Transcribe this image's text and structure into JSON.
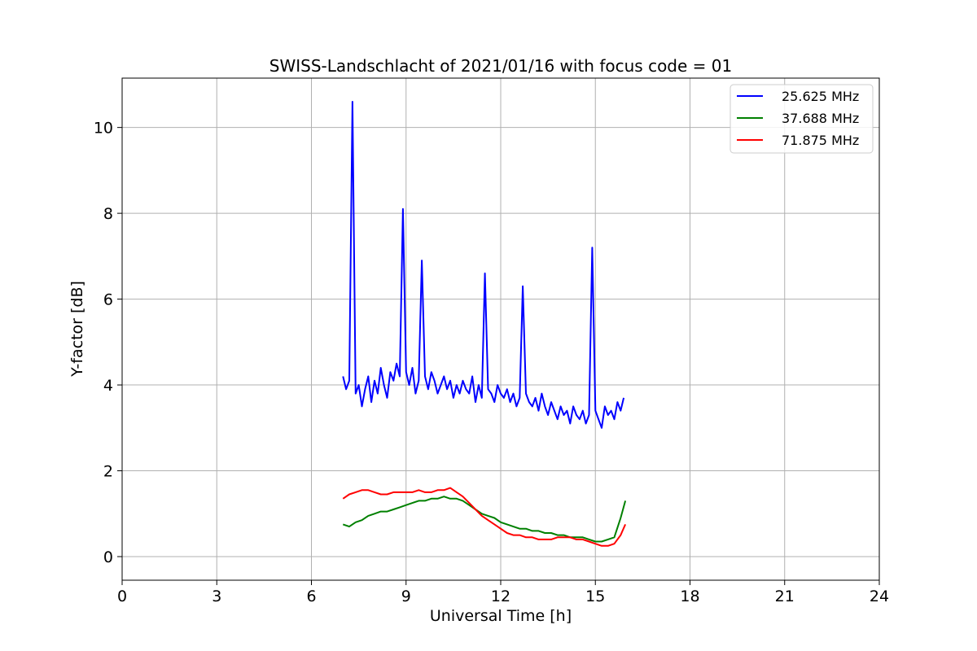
{
  "chart_data": {
    "type": "line",
    "title": "SWISS-Landschlacht of 2021/01/16 with focus code = 01",
    "xlabel": "Universal Time [h]",
    "ylabel": "Y-factor [dB]",
    "xlim": [
      0,
      24
    ],
    "ylim": [
      -0.55,
      11.15
    ],
    "x_ticks": [
      0,
      3,
      6,
      9,
      12,
      15,
      18,
      21,
      24
    ],
    "y_ticks": [
      0,
      2,
      4,
      6,
      8,
      10
    ],
    "grid": true,
    "legend_position": "top-right",
    "colors": {
      "blue": "#0000ff",
      "green": "#008000",
      "red": "#ff0000",
      "grid": "#b0b0b0"
    },
    "series": [
      {
        "name": "25.625 MHz",
        "color": "#0000ff",
        "x": [
          7.0,
          7.1,
          7.2,
          7.3,
          7.4,
          7.5,
          7.6,
          7.7,
          7.8,
          7.9,
          8.0,
          8.1,
          8.2,
          8.3,
          8.4,
          8.5,
          8.6,
          8.7,
          8.8,
          8.9,
          9.0,
          9.1,
          9.2,
          9.3,
          9.4,
          9.5,
          9.6,
          9.7,
          9.8,
          9.9,
          10.0,
          10.1,
          10.2,
          10.3,
          10.4,
          10.5,
          10.6,
          10.7,
          10.8,
          10.9,
          11.0,
          11.1,
          11.2,
          11.3,
          11.4,
          11.5,
          11.6,
          11.7,
          11.8,
          11.9,
          12.0,
          12.1,
          12.2,
          12.3,
          12.4,
          12.5,
          12.6,
          12.7,
          12.8,
          12.9,
          13.0,
          13.1,
          13.2,
          13.3,
          13.4,
          13.5,
          13.6,
          13.7,
          13.8,
          13.9,
          14.0,
          14.1,
          14.2,
          14.3,
          14.4,
          14.5,
          14.6,
          14.7,
          14.8,
          14.9,
          15.0,
          15.1,
          15.2,
          15.3,
          15.4,
          15.5,
          15.6,
          15.7,
          15.8,
          15.9
        ],
        "y": [
          4.2,
          3.9,
          4.1,
          10.6,
          3.8,
          4.0,
          3.5,
          3.9,
          4.2,
          3.6,
          4.1,
          3.8,
          4.4,
          4.0,
          3.7,
          4.3,
          4.1,
          4.5,
          4.2,
          8.1,
          4.3,
          4.0,
          4.4,
          3.8,
          4.1,
          6.9,
          4.2,
          3.9,
          4.3,
          4.1,
          3.8,
          4.0,
          4.2,
          3.9,
          4.1,
          3.7,
          4.0,
          3.8,
          4.1,
          3.9,
          3.8,
          4.2,
          3.6,
          4.0,
          3.7,
          6.6,
          3.9,
          3.8,
          3.6,
          4.0,
          3.8,
          3.7,
          3.9,
          3.6,
          3.8,
          3.5,
          3.7,
          6.3,
          3.8,
          3.6,
          3.5,
          3.7,
          3.4,
          3.8,
          3.5,
          3.3,
          3.6,
          3.4,
          3.2,
          3.5,
          3.3,
          3.4,
          3.1,
          3.5,
          3.3,
          3.2,
          3.4,
          3.1,
          3.3,
          7.2,
          3.4,
          3.2,
          3.0,
          3.5,
          3.3,
          3.4,
          3.2,
          3.6,
          3.4,
          3.7
        ]
      },
      {
        "name": "37.688 MHz",
        "color": "#008000",
        "x": [
          7.0,
          7.2,
          7.4,
          7.6,
          7.8,
          8.0,
          8.2,
          8.4,
          8.6,
          8.8,
          9.0,
          9.2,
          9.4,
          9.6,
          9.8,
          10.0,
          10.2,
          10.4,
          10.6,
          10.8,
          11.0,
          11.2,
          11.4,
          11.6,
          11.8,
          12.0,
          12.2,
          12.4,
          12.6,
          12.8,
          13.0,
          13.2,
          13.4,
          13.6,
          13.8,
          14.0,
          14.2,
          14.4,
          14.6,
          14.8,
          15.0,
          15.2,
          15.4,
          15.6,
          15.8,
          15.95
        ],
        "y": [
          0.75,
          0.7,
          0.8,
          0.85,
          0.95,
          1.0,
          1.05,
          1.05,
          1.1,
          1.15,
          1.2,
          1.25,
          1.3,
          1.3,
          1.35,
          1.35,
          1.4,
          1.35,
          1.35,
          1.3,
          1.2,
          1.1,
          1.0,
          0.95,
          0.9,
          0.8,
          0.75,
          0.7,
          0.65,
          0.65,
          0.6,
          0.6,
          0.55,
          0.55,
          0.5,
          0.5,
          0.45,
          0.45,
          0.45,
          0.4,
          0.35,
          0.35,
          0.4,
          0.45,
          0.9,
          1.3
        ]
      },
      {
        "name": "71.875 MHz",
        "color": "#ff0000",
        "x": [
          7.0,
          7.2,
          7.4,
          7.6,
          7.8,
          8.0,
          8.2,
          8.4,
          8.6,
          8.8,
          9.0,
          9.2,
          9.4,
          9.6,
          9.8,
          10.0,
          10.2,
          10.4,
          10.6,
          10.8,
          11.0,
          11.2,
          11.4,
          11.6,
          11.8,
          12.0,
          12.2,
          12.4,
          12.6,
          12.8,
          13.0,
          13.2,
          13.4,
          13.6,
          13.8,
          14.0,
          14.2,
          14.4,
          14.6,
          14.8,
          15.0,
          15.2,
          15.4,
          15.6,
          15.8,
          15.95
        ],
        "y": [
          1.35,
          1.45,
          1.5,
          1.55,
          1.55,
          1.5,
          1.45,
          1.45,
          1.5,
          1.5,
          1.5,
          1.5,
          1.55,
          1.5,
          1.5,
          1.55,
          1.55,
          1.6,
          1.5,
          1.4,
          1.25,
          1.1,
          0.95,
          0.85,
          0.75,
          0.65,
          0.55,
          0.5,
          0.5,
          0.45,
          0.45,
          0.4,
          0.4,
          0.4,
          0.45,
          0.45,
          0.45,
          0.4,
          0.4,
          0.35,
          0.3,
          0.25,
          0.25,
          0.3,
          0.5,
          0.75
        ]
      }
    ]
  }
}
